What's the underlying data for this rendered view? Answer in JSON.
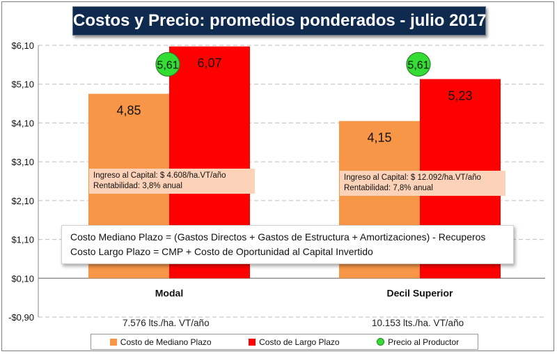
{
  "chart_data": {
    "type": "bar",
    "title": "Costos  y Precio: promedios ponderados - julio 2017",
    "categories": [
      "Modal",
      "Decil Superior"
    ],
    "series": [
      {
        "name": "Costo de Mediano Plazo",
        "values": [
          4.85,
          4.15
        ],
        "labels": [
          "4,85",
          "4,15"
        ],
        "color": "#f79646"
      },
      {
        "name": "Costo de Largo Plazo",
        "values": [
          6.07,
          5.23
        ],
        "labels": [
          "6,07",
          "5,23"
        ],
        "color": "#ff0000"
      }
    ],
    "markers": {
      "name": "Precio al Productor",
      "values": [
        5.61,
        5.61
      ],
      "labels": [
        "5,61",
        "5,61"
      ],
      "color": "#33dd33"
    },
    "ylim": [
      -0.9,
      6.1
    ],
    "yticks": [
      6.1,
      5.1,
      4.1,
      3.1,
      2.1,
      1.1,
      0.1,
      -0.9
    ],
    "ytick_labels": [
      "$6,10",
      "$5,10",
      "$4,10",
      "$3,10",
      "$2,10",
      "$1,10",
      "$0,10",
      "-$0,90"
    ],
    "grid": true,
    "legend": "bottom"
  },
  "info_boxes": [
    {
      "line1": "Ingreso al Capital: $ 4.608/ha.VT/año",
      "line2": "Rentabilidad: 3,8% anual"
    },
    {
      "line1": "Ingreso al Capital: $ 12.092/ha.VT/año",
      "line2": "Rentabilidad: 7,8% anual"
    }
  ],
  "note": {
    "line1": "Costo Mediano Plazo = (Gastos Directos + Gastos de Estructura + Amortizaciones) - Recuperos",
    "line2": "Costo Largo Plazo = CMP + Costo de Oportunidad al Capital Invertido"
  },
  "production": [
    "7.576 lts./ha. VT/año",
    "10.153 lts./ha.  VT/año"
  ],
  "legend": {
    "mediano": "Costo de Mediano Plazo",
    "largo": "Costo de Largo Plazo",
    "precio": "Precio al Productor"
  }
}
